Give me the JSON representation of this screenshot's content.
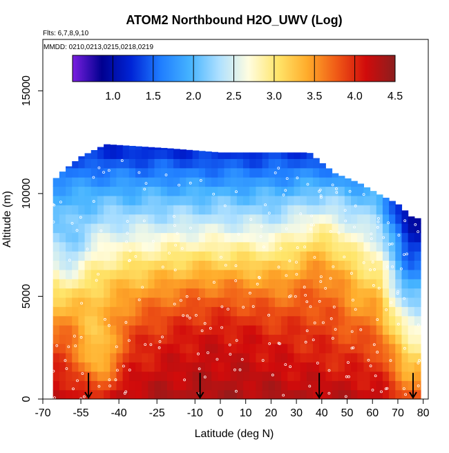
{
  "chart_data": {
    "type": "heatmap",
    "title": "ATOM2 Northbound H2O_UWV (Log)",
    "flights_note": "Flts: 6,7,8,9,10",
    "dates_note": "MMDD: 0210,0213,0215,0218,0219",
    "xlabel": "Latitude (deg N)",
    "ylabel": "Altitude (m)",
    "xlim": [
      -70,
      82
    ],
    "ylim": [
      0,
      17500
    ],
    "x_ticks": [
      -70,
      -55,
      -40,
      -25,
      -10,
      0,
      10,
      20,
      30,
      40,
      50,
      60,
      70,
      80
    ],
    "y_ticks": [
      0,
      5000,
      10000,
      15000
    ],
    "colorbar": {
      "min": 0.5,
      "max": 4.5,
      "ticks": [
        1.0,
        1.5,
        2.0,
        2.5,
        3.0,
        3.5,
        4.0,
        4.5
      ],
      "tick_labels": [
        "1.0",
        "1.5",
        "2.0",
        "2.5",
        "3.0",
        "3.5",
        "4.0",
        "4.5"
      ],
      "colors": [
        "#7a1fe0",
        "#00008f",
        "#0024d6",
        "#1f7dff",
        "#45b3ff",
        "#aee0ff",
        "#fffde0",
        "#ffe56a",
        "#ffac2b",
        "#f05a16",
        "#d10b0b",
        "#8b1e1e"
      ]
    },
    "profile_latitudes": [
      -52,
      -8,
      39,
      76
    ],
    "grid_lat_step": 2.5,
    "grid_alt_step": 450,
    "field": {
      "lat_range": [
        -66,
        79
      ],
      "alt_anchors": [
        0,
        3000,
        6000,
        8000,
        10000,
        11000,
        12000
      ],
      "baseline_log10": [
        4.25,
        3.7,
        3.0,
        2.45,
        1.95,
        1.6,
        1.25
      ],
      "plume": {
        "lat": 0,
        "alt_center": 4500,
        "alt_width": 5000,
        "lat_width": 30,
        "amplitude": 0.5
      },
      "south_dry_patches": [
        {
          "lat": -60,
          "alt": 7000,
          "amplitude": 0.45
        },
        {
          "lat": -48,
          "alt": 2200,
          "amplitude": 0.7
        }
      ],
      "north_moist_tongue": {
        "lat": 40,
        "alt": 7000,
        "amplitude": 0.45
      },
      "arctic_dry": {
        "lat_start": 62,
        "amplitude": 1.3
      }
    },
    "envelope": [
      {
        "lat": -66,
        "top_alt": 10600
      },
      {
        "lat": -62,
        "top_alt": 11100
      },
      {
        "lat": -55,
        "top_alt": 11800
      },
      {
        "lat": -45,
        "top_alt": 12400
      },
      {
        "lat": -20,
        "top_alt": 12200
      },
      {
        "lat": 0,
        "top_alt": 12000
      },
      {
        "lat": 20,
        "top_alt": 12000
      },
      {
        "lat": 35,
        "top_alt": 12000
      },
      {
        "lat": 45,
        "top_alt": 11000
      },
      {
        "lat": 55,
        "top_alt": 10500
      },
      {
        "lat": 62,
        "top_alt": 10000
      },
      {
        "lat": 70,
        "top_alt": 9500
      },
      {
        "lat": 76,
        "top_alt": 8800
      },
      {
        "lat": 79,
        "top_alt": 8800
      }
    ]
  }
}
